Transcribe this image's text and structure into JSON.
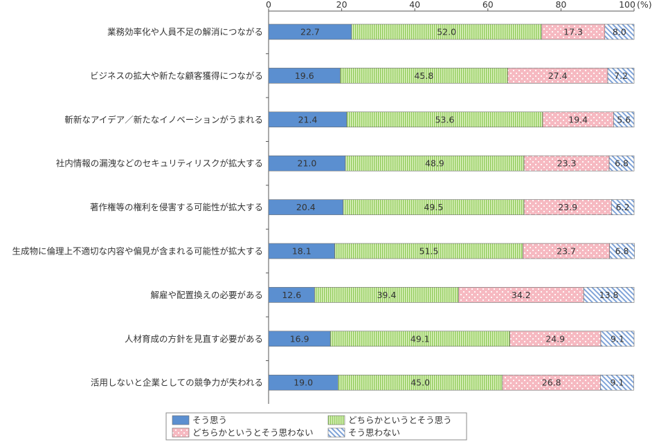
{
  "chart_data": {
    "type": "bar",
    "orientation": "horizontal",
    "stacked": true,
    "unit_label": "(%)",
    "xlim": [
      0,
      100
    ],
    "x_ticks": [
      "0",
      "20",
      "40",
      "60",
      "80",
      "100"
    ],
    "categories": [
      "業務効率化や人員不足の解消につながる",
      "ビジネスの拡大や新たな顧客獲得につながる",
      "斬新なアイデア／新たなイノベーションがうまれる",
      "社内情報の漏洩などのセキュリティリスクが拡大する",
      "著作権等の権利を侵害する可能性が拡大する",
      "生成物に倫理上不適切な内容や偏見が含まれる可能性が拡大する",
      "解雇や配置換えの必要がある",
      "人材育成の方針を見直す必要がある",
      "活用しないと企業としての競争力が失われる"
    ],
    "series": [
      {
        "name": "そう思う",
        "color": "#5b8fd0",
        "pattern": "solid",
        "values": [
          22.7,
          19.6,
          21.4,
          21.0,
          20.4,
          18.1,
          12.6,
          16.9,
          19.0
        ]
      },
      {
        "name": "どちらかというとそう思う",
        "color": "#c8e89a",
        "pattern": "vertical-stripes",
        "values": [
          52.0,
          45.8,
          53.6,
          48.9,
          49.5,
          51.5,
          39.4,
          49.1,
          45.0
        ]
      },
      {
        "name": "どちらかというとそう思わない",
        "color": "#f8c6cc",
        "pattern": "dots",
        "values": [
          17.3,
          27.4,
          19.4,
          23.3,
          23.9,
          23.7,
          34.2,
          24.9,
          26.8
        ]
      },
      {
        "name": "そう思わない",
        "color": "#c5d9f1",
        "pattern": "diagonal-stripes",
        "values": [
          8.0,
          7.2,
          5.6,
          6.8,
          6.2,
          6.8,
          13.8,
          9.1,
          9.1
        ]
      }
    ],
    "value_labels": [
      [
        "22.7",
        "52.0",
        "17.3",
        "8.0"
      ],
      [
        "19.6",
        "45.8",
        "27.4",
        "7.2"
      ],
      [
        "21.4",
        "53.6",
        "19.4",
        "5.6"
      ],
      [
        "21.0",
        "48.9",
        "23.3",
        "6.8"
      ],
      [
        "20.4",
        "49.5",
        "23.9",
        "6.2"
      ],
      [
        "18.1",
        "51.5",
        "23.7",
        "6.8"
      ],
      [
        "12.6",
        "39.4",
        "34.2",
        "13.8"
      ],
      [
        "16.9",
        "49.1",
        "24.9",
        "9.1"
      ],
      [
        "19.0",
        "45.0",
        "26.8",
        "9.1"
      ]
    ],
    "legend_position": "bottom-center"
  }
}
